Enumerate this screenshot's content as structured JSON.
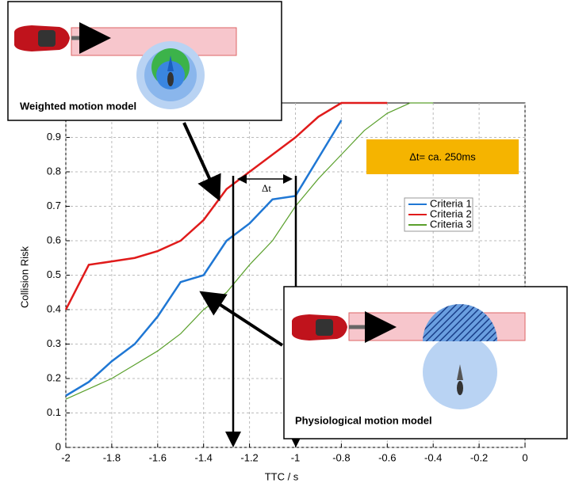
{
  "chart_data": {
    "type": "line",
    "xlabel": "TTC / s",
    "ylabel": "Collision Risk",
    "x": [
      -2,
      -1.9,
      -1.8,
      -1.7,
      -1.6,
      -1.5,
      -1.4,
      -1.3,
      -1.2,
      -1.1,
      -1.0,
      -0.9,
      -0.8,
      -0.7,
      -0.6,
      -0.5,
      -0.4
    ],
    "series": [
      {
        "name": "Criteria 1",
        "color": "#1f77d4",
        "values": [
          0.15,
          0.19,
          0.25,
          0.3,
          0.38,
          0.48,
          0.5,
          0.6,
          0.65,
          0.72,
          0.73,
          0.84,
          0.95,
          null,
          null,
          null,
          null
        ]
      },
      {
        "name": "Criteria 2",
        "color": "#e01b1b",
        "values": [
          0.4,
          0.53,
          0.54,
          0.55,
          0.57,
          0.6,
          0.66,
          0.75,
          0.8,
          0.85,
          0.9,
          0.96,
          1.0,
          1.0,
          1.0,
          null,
          null
        ]
      },
      {
        "name": "Criteria 3",
        "color": "#5aa02c",
        "values": [
          0.14,
          0.17,
          0.2,
          0.24,
          0.28,
          0.33,
          0.4,
          0.45,
          0.53,
          0.6,
          0.7,
          0.78,
          0.85,
          0.92,
          0.97,
          1.0,
          1.0
        ]
      }
    ],
    "xlim": [
      -2,
      0
    ],
    "ylim": [
      0,
      1
    ],
    "xticks": [
      -2,
      -1.8,
      -1.6,
      -1.4,
      -1.2,
      -1,
      -0.8,
      -0.6,
      -0.4,
      -0.2,
      0
    ],
    "yticks": [
      0,
      0.1,
      0.2,
      0.3,
      0.4,
      0.5,
      0.6,
      0.7,
      0.8,
      0.9
    ],
    "grid": true,
    "annotations": [
      "Weighted motion model",
      "Physiological motion model",
      "Δt= ca. 250ms",
      "Δt"
    ]
  }
}
